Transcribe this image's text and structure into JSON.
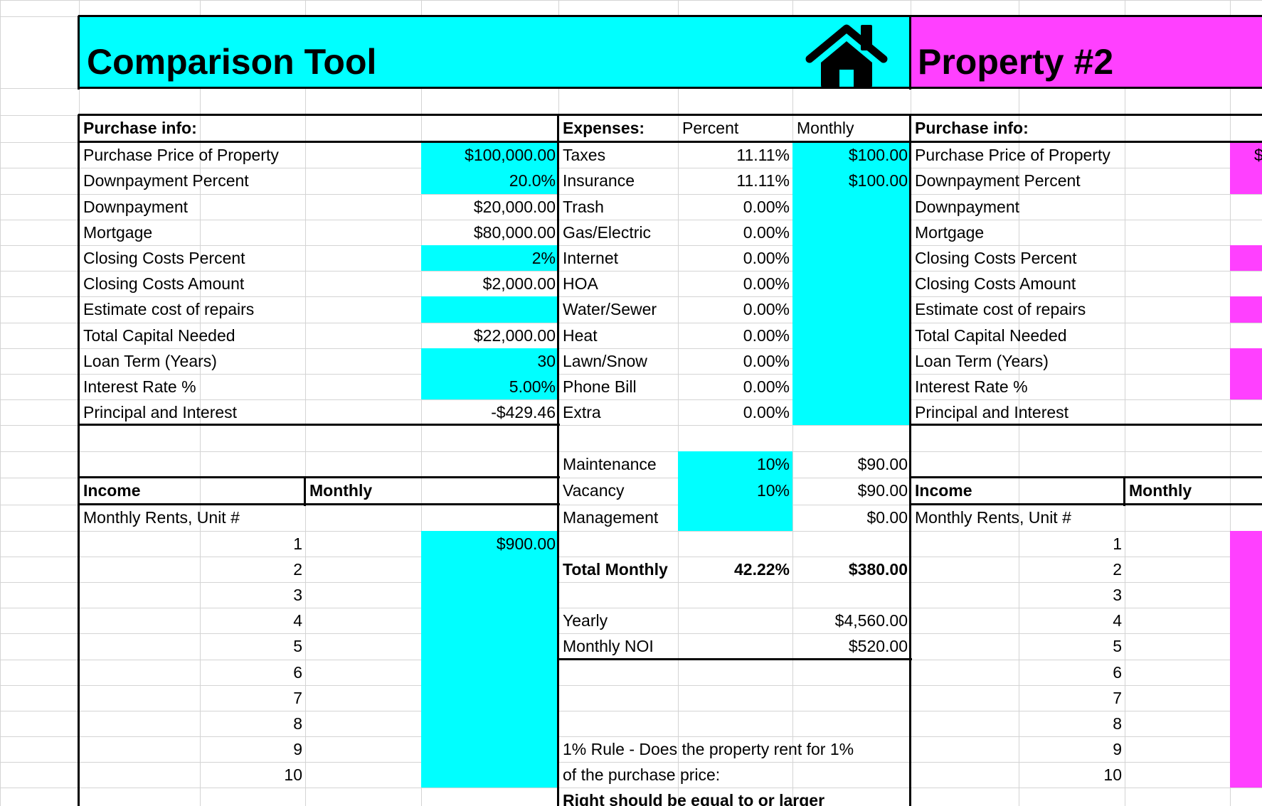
{
  "colors": {
    "property1_accent": "#00ffff",
    "property2_accent": "#ff40ff",
    "grid": "#d4d4d4"
  },
  "header": {
    "title": "Comparison Tool",
    "icon": "house-icon",
    "property2_title": "Property #2"
  },
  "purchase_info": {
    "heading": "Purchase info:",
    "rows": [
      {
        "label": "Purchase Price of Property",
        "value": "$100,000.00"
      },
      {
        "label": "Downpayment Percent",
        "value": "20.0%"
      },
      {
        "label": "Downpayment",
        "value": "$20,000.00"
      },
      {
        "label": "Mortgage",
        "value": "$80,000.00"
      },
      {
        "label": "Closing Costs Percent",
        "value": "2%"
      },
      {
        "label": "Closing Costs Amount",
        "value": "$2,000.00"
      },
      {
        "label": "Estimate cost of repairs",
        "value": ""
      },
      {
        "label": "Total Capital Needed",
        "value": "$22,000.00"
      },
      {
        "label": "Loan Term (Years)",
        "value": "30"
      },
      {
        "label": "Interest Rate %",
        "value": "5.00%"
      },
      {
        "label": "Principal and Interest",
        "value": "-$429.46"
      }
    ]
  },
  "expenses": {
    "heading": "Expenses:",
    "percent_header": "Percent",
    "monthly_header": "Monthly",
    "rows": [
      {
        "label": "Taxes",
        "percent": "11.11%",
        "monthly": "$100.00"
      },
      {
        "label": "Insurance",
        "percent": "11.11%",
        "monthly": "$100.00"
      },
      {
        "label": "Trash",
        "percent": "0.00%",
        "monthly": ""
      },
      {
        "label": "Gas/Electric",
        "percent": "0.00%",
        "monthly": ""
      },
      {
        "label": "Internet",
        "percent": "0.00%",
        "monthly": ""
      },
      {
        "label": "HOA",
        "percent": "0.00%",
        "monthly": ""
      },
      {
        "label": "Water/Sewer",
        "percent": "0.00%",
        "monthly": ""
      },
      {
        "label": "Heat",
        "percent": "0.00%",
        "monthly": ""
      },
      {
        "label": "Lawn/Snow",
        "percent": "0.00%",
        "monthly": ""
      },
      {
        "label": "Phone Bill",
        "percent": "0.00%",
        "monthly": ""
      },
      {
        "label": "Extra",
        "percent": "0.00%",
        "monthly": ""
      }
    ],
    "reserves": [
      {
        "label": "Maintenance",
        "percent": "10%",
        "monthly": "$90.00"
      },
      {
        "label": "Vacancy",
        "percent": "10%",
        "monthly": "$90.00"
      },
      {
        "label": "Management",
        "percent": "",
        "monthly": "$0.00"
      }
    ],
    "total": {
      "label": "Total Monthly",
      "percent": "42.22%",
      "monthly": "$380.00"
    },
    "yearly": {
      "label": "Yearly",
      "value": "$4,560.00"
    },
    "noi": {
      "label": "Monthly NOI",
      "value": "$520.00"
    },
    "rule_line1": "1% Rule - Does the property rent for 1%",
    "rule_line2": "of the purchase price:",
    "rule_line3": "Right should be equal to or larger"
  },
  "income": {
    "heading": "Income",
    "monthly_header": "Monthly",
    "rents_label": "Monthly Rents, Unit #",
    "units": [
      {
        "unit": "1",
        "rent": "$900.00"
      },
      {
        "unit": "2",
        "rent": ""
      },
      {
        "unit": "3",
        "rent": ""
      },
      {
        "unit": "4",
        "rent": ""
      },
      {
        "unit": "5",
        "rent": ""
      },
      {
        "unit": "6",
        "rent": ""
      },
      {
        "unit": "7",
        "rent": ""
      },
      {
        "unit": "8",
        "rent": ""
      },
      {
        "unit": "9",
        "rent": ""
      },
      {
        "unit": "10",
        "rent": ""
      }
    ]
  },
  "property2": {
    "purchase_heading": "Purchase info:",
    "labels": [
      "Purchase Price of Property",
      "Downpayment Percent",
      "Downpayment",
      "Mortgage",
      "Closing Costs Percent",
      "Closing Costs Amount",
      "Estimate cost of repairs",
      "Total Capital Needed",
      "Loan Term (Years)",
      "Interest Rate %",
      "Principal and Interest"
    ],
    "first_value_partial": "$",
    "income_heading": "Income",
    "monthly_header": "Monthly",
    "rents_label": "Monthly Rents, Unit #",
    "units": [
      "1",
      "2",
      "3",
      "4",
      "5",
      "6",
      "7",
      "8",
      "9",
      "10"
    ]
  }
}
